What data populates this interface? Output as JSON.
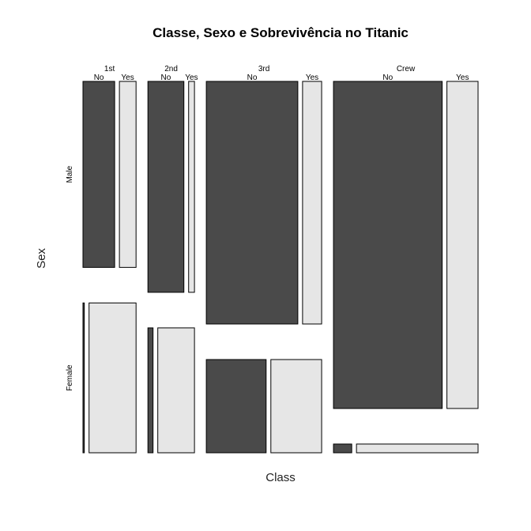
{
  "chart_data": {
    "type": "mosaic",
    "title": "Classe, Sexo e Sobrevivência no Titanic",
    "xlabel": "Class",
    "ylabel": "Sex",
    "class_levels": [
      "1st",
      "2nd",
      "3rd",
      "Crew"
    ],
    "sex_levels": [
      "Male",
      "Female"
    ],
    "survived_levels": [
      "No",
      "Yes"
    ],
    "counts": {
      "1st": {
        "Male": {
          "No": 118,
          "Yes": 62
        },
        "Female": {
          "No": 4,
          "Yes": 141
        }
      },
      "2nd": {
        "Male": {
          "No": 154,
          "Yes": 25
        },
        "Female": {
          "No": 13,
          "Yes": 93
        }
      },
      "3rd": {
        "Male": {
          "No": 422,
          "Yes": 88
        },
        "Female": {
          "No": 106,
          "Yes": 90
        }
      },
      "Crew": {
        "Male": {
          "No": 670,
          "Yes": 192
        },
        "Female": {
          "No": 3,
          "Yes": 20
        }
      }
    },
    "colors": {
      "No": "#4a4a4a",
      "Yes": "#e6e6e6",
      "stroke": "#000000"
    }
  }
}
